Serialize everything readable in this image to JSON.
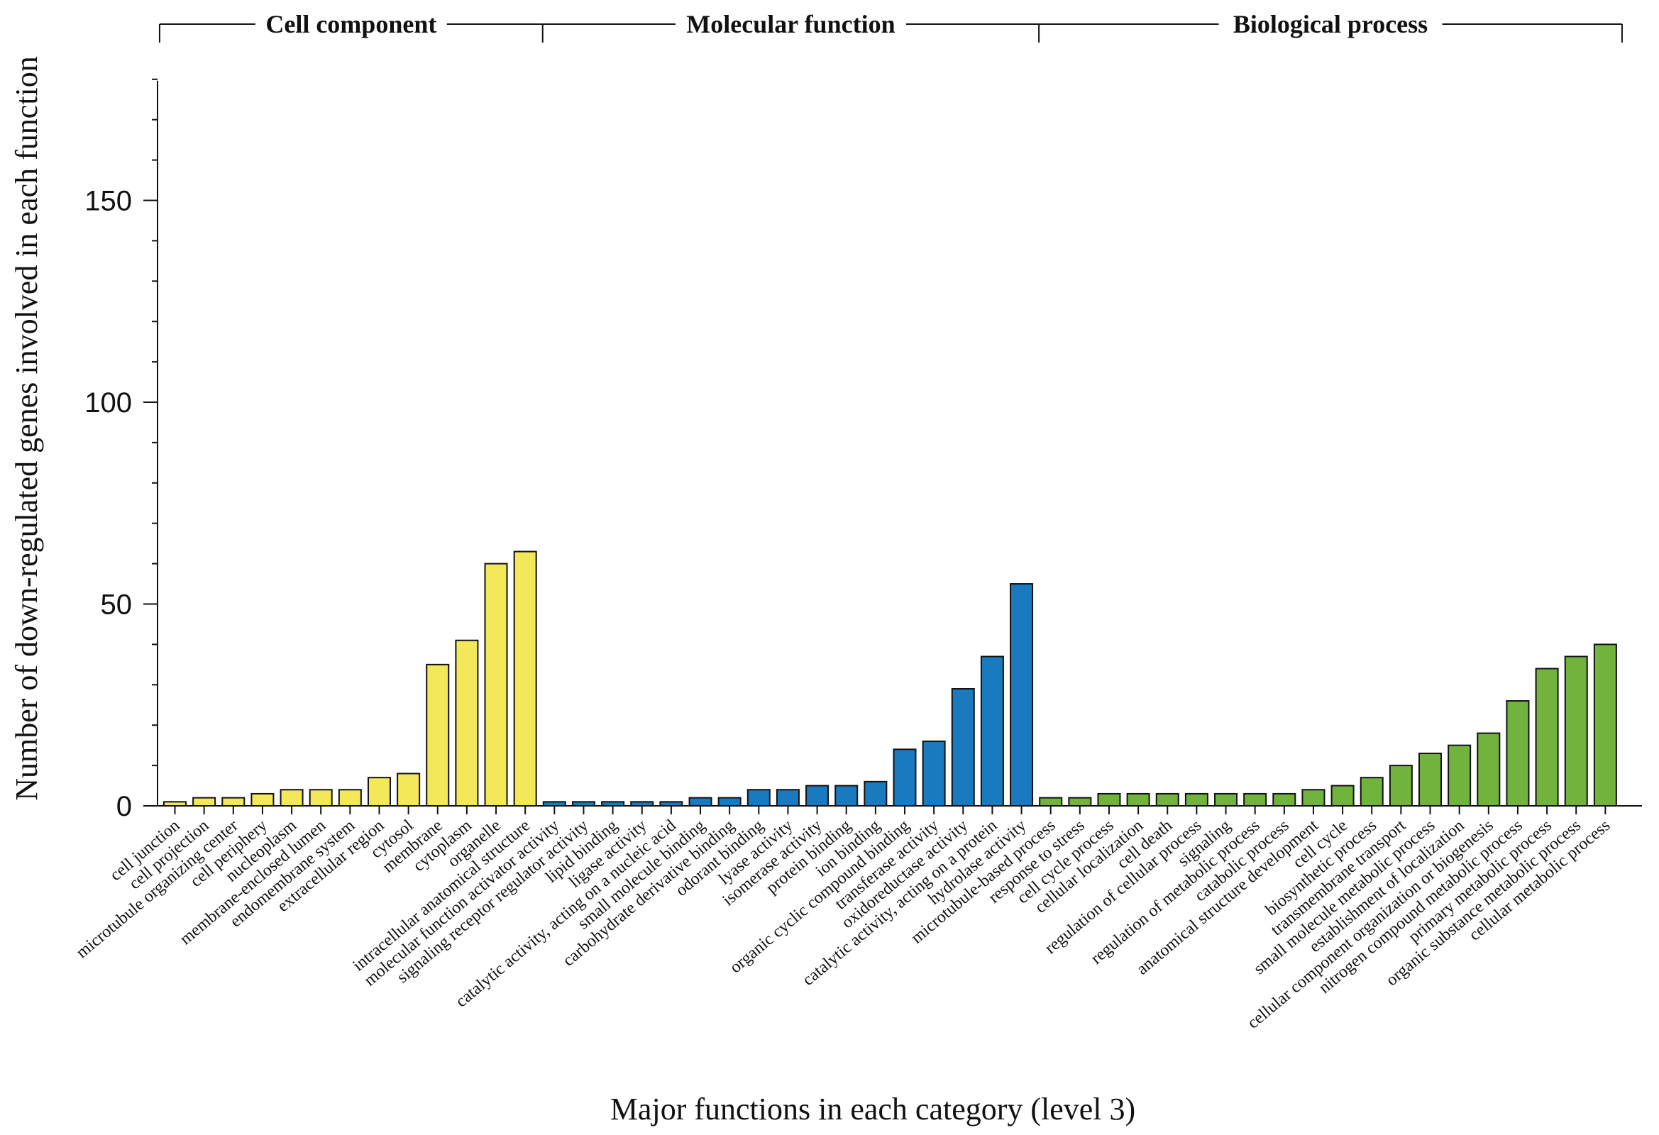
{
  "chart_data": {
    "type": "bar",
    "title": "",
    "xlabel": "Major functions in each category (level 3)",
    "ylabel": "Number of down-regulated genes involved in each function",
    "ylim": [
      0,
      180
    ],
    "yticks": [
      0,
      50,
      100,
      150
    ],
    "grid": false,
    "groups": [
      {
        "name": "Cell component",
        "color": "#f2e85a",
        "categories": [
          "cell junction",
          "cell projection",
          "microtubule organizing center",
          "cell periphery",
          "nucleoplasm",
          "membrane-enclosed lumen",
          "endomembrane system",
          "extracellular region",
          "cytosol",
          "membrane",
          "cytoplasm",
          "organelle",
          "intracellular anatomical structure"
        ],
        "values": [
          1,
          2,
          2,
          3,
          4,
          4,
          4,
          7,
          8,
          35,
          41,
          60,
          63
        ]
      },
      {
        "name": "Molecular function",
        "color": "#1a7abf",
        "categories": [
          "molecular function activator activity",
          "signaling receptor regulator activity",
          "lipid binding",
          "ligase activity",
          "catalytic activity, acting on a nucleic acid",
          "small molecule binding",
          "carbohydrate derivative binding",
          "odorant binding",
          "lyase activity",
          "isomerase activity",
          "protein binding",
          "ion binding",
          "organic cyclic compound binding",
          "transferase activity",
          "oxidoreductase activity",
          "catalytic activity, acting on a protein",
          "hydrolase activity"
        ],
        "values": [
          1,
          1,
          1,
          1,
          1,
          2,
          2,
          4,
          4,
          5,
          5,
          6,
          14,
          16,
          29,
          37,
          55
        ]
      },
      {
        "name": "Biological process",
        "color": "#72b33e",
        "categories": [
          "microtubule-based process",
          "response to stress",
          "cell cycle process",
          "cellular localization",
          "cell death",
          "regulation of cellular process",
          "signaling",
          "regulation of metabolic process",
          "catabolic process",
          "anatomical structure development",
          "cell cycle",
          "biosynthetic process",
          "transmembrane transport",
          "small molecule metabolic process",
          "establishment of localization",
          "cellular component organization or biogenesis",
          "nitrogen compound metabolic process",
          "primary metabolic process",
          "organic substance metabolic process",
          "cellular metabolic process"
        ],
        "values": [
          2,
          2,
          3,
          3,
          3,
          3,
          3,
          3,
          3,
          4,
          5,
          7,
          10,
          13,
          15,
          18,
          26,
          34,
          37,
          40
        ]
      }
    ]
  }
}
